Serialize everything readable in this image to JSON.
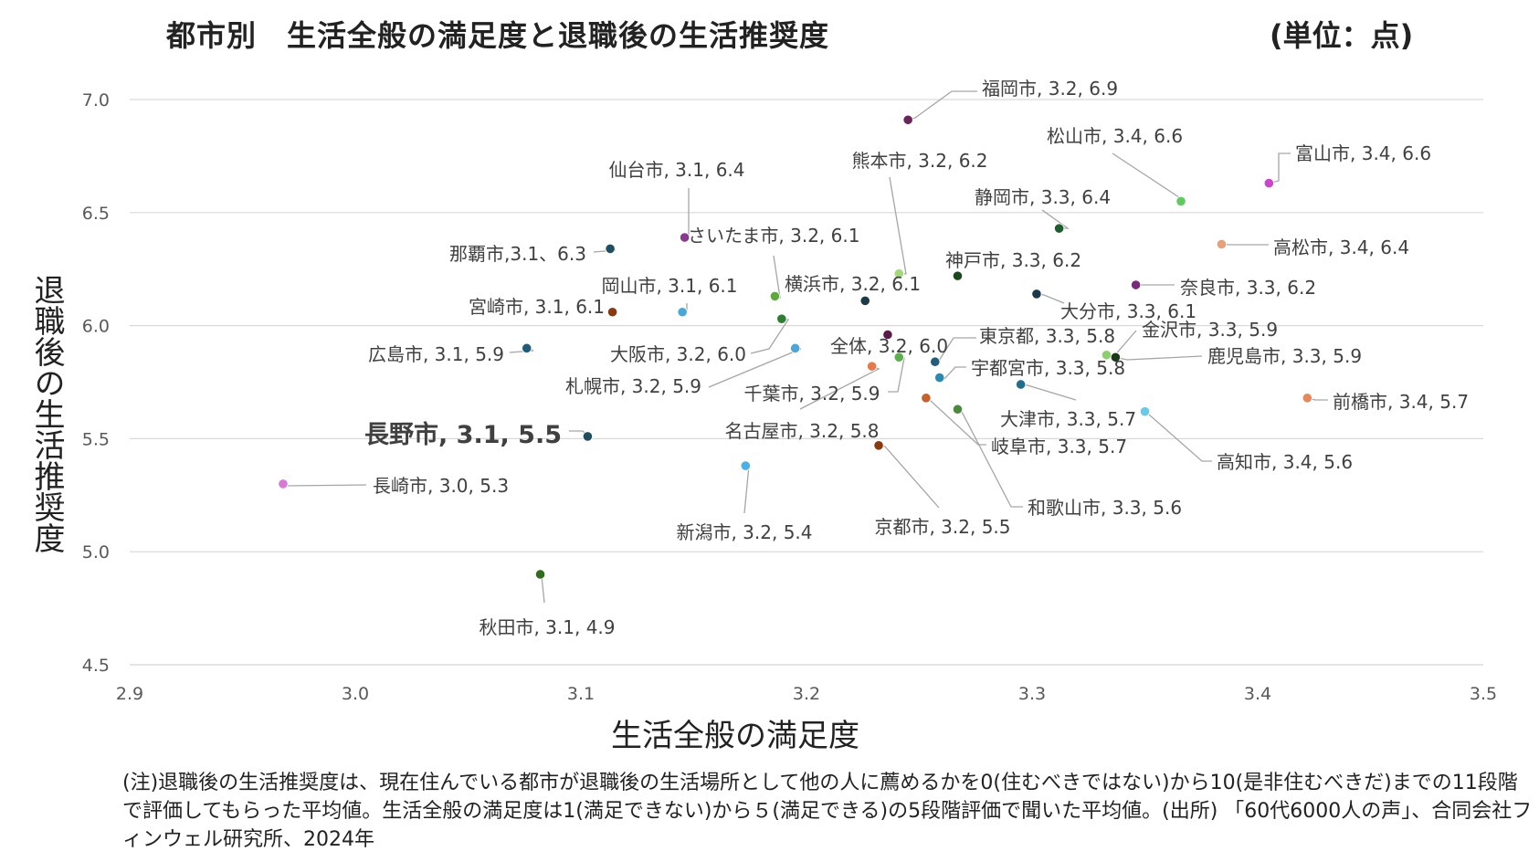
{
  "title": "都市別　生活全般の満足度と退職後の生活推奨度",
  "unit": "(単位：点)",
  "note": "(注)退職後の生活推奨度は、現在住んでいる都市が退職後の生活場所として他の人に薦めるかを0(住むべきではない)から10(是非住むべきだ)までの11段階で評価してもらった平均値。生活全般の満足度は1(満足できない)から５(満足できる)の5段階評価で聞いた平均値。(出所) 「60代6000人の声」、合同会社フィンウェル研究所、2024年",
  "chart_data": {
    "type": "scatter",
    "xlabel": "生活全般の満足度",
    "ylabel": "退職後の生活推奨度",
    "xlim": [
      2.9,
      3.5
    ],
    "ylim": [
      4.5,
      7.0
    ],
    "x_ticks": [
      "2.9",
      "3.0",
      "3.1",
      "3.2",
      "3.3",
      "3.4",
      "3.5"
    ],
    "y_ticks": [
      "4.5",
      "5.0",
      "5.5",
      "6.0",
      "6.5",
      "7.0"
    ],
    "grid": "horizontal",
    "points": [
      {
        "label": "福岡市, 3.2, 6.9",
        "x": 3.245,
        "y": 6.91,
        "color": "#6b2459"
      },
      {
        "label": "松山市, 3.4, 6.6",
        "x": 3.366,
        "y": 6.55,
        "color": "#5ecb5e"
      },
      {
        "label": "富山市, 3.4, 6.6",
        "x": 3.405,
        "y": 6.63,
        "color": "#cc44cc"
      },
      {
        "label": "熊本市, 3.2, 6.2",
        "x": 3.241,
        "y": 6.23,
        "color": "#a3d977"
      },
      {
        "label": "仙台市, 3.1, 6.4",
        "x": 3.146,
        "y": 6.39,
        "color": "#8a3a8e"
      },
      {
        "label": "静岡市, 3.3, 6.4",
        "x": 3.312,
        "y": 6.43,
        "color": "#1e5e2e"
      },
      {
        "label": "那覇市,3.1、6.3",
        "x": 3.113,
        "y": 6.34,
        "color": "#1f4e5f"
      },
      {
        "label": "さいたま市, 3.2, 6.1",
        "x": 3.186,
        "y": 6.13,
        "color": "#5aab3a"
      },
      {
        "label": "高松市, 3.4, 6.4",
        "x": 3.384,
        "y": 6.36,
        "color": "#e8a07a"
      },
      {
        "label": "神戸市, 3.3, 6.2",
        "x": 3.267,
        "y": 6.22,
        "color": "#1a4a1a"
      },
      {
        "label": "奈良市, 3.3, 6.2",
        "x": 3.346,
        "y": 6.18,
        "color": "#7a2a7a"
      },
      {
        "label": "岡山市, 3.1, 6.1",
        "x": 3.145,
        "y": 6.06,
        "color": "#4aa8d8"
      },
      {
        "label": "横浜市, 3.2, 6.1",
        "x": 3.226,
        "y": 6.11,
        "color": "#1c3a4a"
      },
      {
        "label": "大分市, 3.3, 6.1",
        "x": 3.302,
        "y": 6.14,
        "color": "#1a3a4a"
      },
      {
        "label": "宮崎市, 3.1, 6.1",
        "x": 3.114,
        "y": 6.06,
        "color": "#8b3a10"
      },
      {
        "label": "大阪市, 3.2, 6.0",
        "x": 3.189,
        "y": 6.03,
        "color": "#2e7d32"
      },
      {
        "label": "全体, 3.2, 6.0",
        "x": 3.236,
        "y": 5.96,
        "color": "#5a1a4a"
      },
      {
        "label": "東京都, 3.3, 5.8",
        "x": 3.257,
        "y": 5.84,
        "color": "#1f5e7a"
      },
      {
        "label": "金沢市, 3.3, 5.9",
        "x": 3.333,
        "y": 5.87,
        "color": "#8bd06a"
      },
      {
        "label": "広島市, 3.1, 5.9",
        "x": 3.076,
        "y": 5.9,
        "color": "#1f5e7a"
      },
      {
        "label": "鹿児島市, 3.3, 5.9",
        "x": 3.337,
        "y": 5.86,
        "color": "#1a3a1a"
      },
      {
        "label": "札幌市, 3.2, 5.9",
        "x": 3.195,
        "y": 5.9,
        "color": "#4aa8d8"
      },
      {
        "label": "宇都宮市, 3.3, 5.8",
        "x": 3.259,
        "y": 5.77,
        "color": "#2a8ab0"
      },
      {
        "label": "千葉市, 3.2, 5.9",
        "x": 3.241,
        "y": 5.86,
        "color": "#5ab04a"
      },
      {
        "label": "名古屋市, 3.2, 5.8",
        "x": 3.229,
        "y": 5.82,
        "color": "#e87a4a"
      },
      {
        "label": "前橋市, 3.4, 5.7",
        "x": 3.422,
        "y": 5.68,
        "color": "#e8875a"
      },
      {
        "label": "大津市, 3.3, 5.7",
        "x": 3.295,
        "y": 5.74,
        "color": "#1f6e8a"
      },
      {
        "label": "岐阜市, 3.3, 5.7",
        "x": 3.253,
        "y": 5.68,
        "color": "#c8602a"
      },
      {
        "label": "長野市, 3.1, 5.5",
        "x": 3.103,
        "y": 5.51,
        "color": "#1f4e5f",
        "bold": true
      },
      {
        "label": "和歌山市, 3.3, 5.6",
        "x": 3.267,
        "y": 5.63,
        "color": "#4a8a3a"
      },
      {
        "label": "高知市, 3.4, 5.6",
        "x": 3.35,
        "y": 5.62,
        "color": "#6ac8e8"
      },
      {
        "label": "京都市, 3.2, 5.5",
        "x": 3.232,
        "y": 5.47,
        "color": "#8b3a10"
      },
      {
        "label": "新潟市, 3.2, 5.4",
        "x": 3.173,
        "y": 5.38,
        "color": "#4ab0e8"
      },
      {
        "label": "長崎市, 3.0, 5.3",
        "x": 2.968,
        "y": 5.3,
        "color": "#d77ad7"
      },
      {
        "label": "秋田市, 3.1, 4.9",
        "x": 3.082,
        "y": 4.9,
        "color": "#2e6e1e"
      }
    ]
  }
}
